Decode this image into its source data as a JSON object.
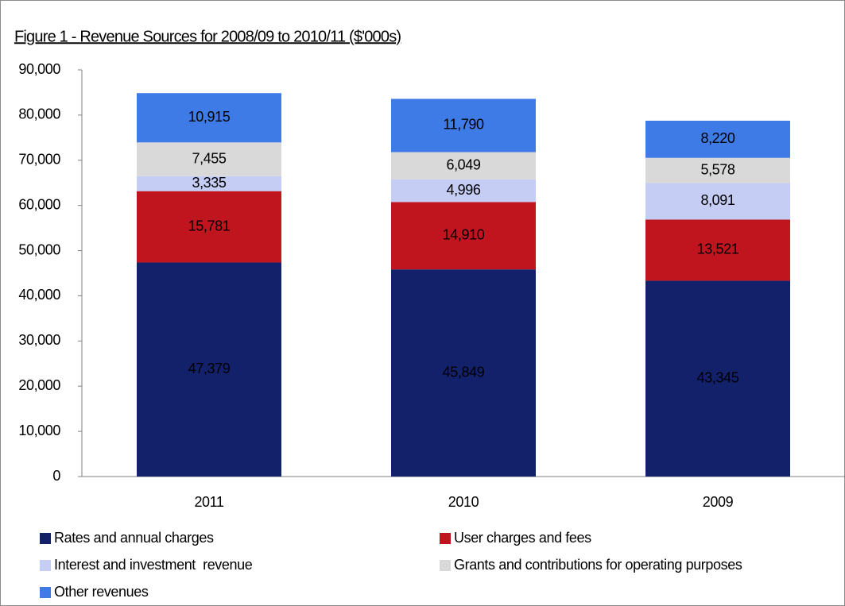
{
  "chart_data": {
    "type": "stacked-bar",
    "title": "Figure 1 - Revenue Sources for 2008/09 to 2010/11 ($'000s)",
    "categories": [
      "2011",
      "2010",
      "2009"
    ],
    "series": [
      {
        "name": "Rates and annual charges",
        "color": "#13216a",
        "values": [
          47379,
          45849,
          43345
        ],
        "value_labels": [
          "47,379",
          "45,849",
          "43,345"
        ]
      },
      {
        "name": "User charges and fees",
        "color": "#c0151f",
        "values": [
          15781,
          14910,
          13521
        ],
        "value_labels": [
          "15,781",
          "14,910",
          "13,521"
        ]
      },
      {
        "name": "Interest and investment  revenue",
        "color": "#c5cdf5",
        "values": [
          3335,
          4996,
          8091
        ],
        "value_labels": [
          "3,335",
          "4,996",
          "8,091"
        ]
      },
      {
        "name": "Grants and contributions for operating purposes",
        "color": "#d9d9d9",
        "values": [
          7455,
          6049,
          5578
        ],
        "value_labels": [
          "7,455",
          "6,049",
          "5,578"
        ]
      },
      {
        "name": "Other revenues",
        "color": "#3f7be6",
        "values": [
          10915,
          11790,
          8220
        ],
        "value_labels": [
          "10,915",
          "11,790",
          "8,220"
        ]
      }
    ],
    "ylim": [
      0,
      90000
    ],
    "yticks": [
      0,
      {
        "value": 10000,
        "label": "10,000"
      },
      {
        "value": 20000,
        "label": "20,000"
      },
      {
        "value": 30000,
        "label": "30,000"
      },
      {
        "value": 40000,
        "label": "40,000"
      },
      {
        "value": 50000,
        "label": "50,000"
      },
      {
        "value": 60000,
        "label": "60,000"
      },
      {
        "value": 70000,
        "label": "70,000"
      },
      {
        "value": 80000,
        "label": "80,000"
      },
      {
        "value": 90000,
        "label": "90,000"
      }
    ],
    "grid": false,
    "legend": "bottom"
  }
}
